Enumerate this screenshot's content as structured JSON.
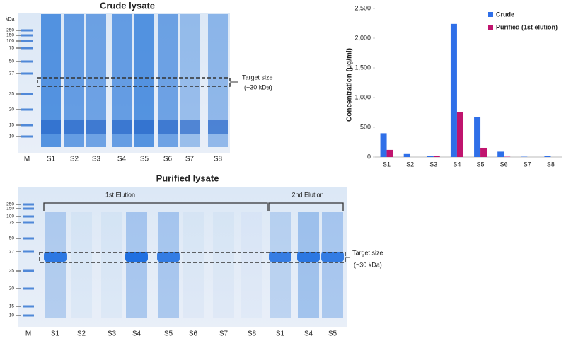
{
  "crude_gel": {
    "title": "Crude lysate",
    "unit": "kDa",
    "markers": [
      "250",
      "150",
      "100",
      "75",
      "50",
      "37",
      "25",
      "20",
      "15",
      "10"
    ],
    "lanes": [
      "M",
      "S1",
      "S2",
      "S3",
      "S4",
      "S5",
      "S6",
      "S7",
      "S8"
    ],
    "target_label": "Target size",
    "target_size": "(~30 kDa)"
  },
  "purified_gel": {
    "title": "Purified lysate",
    "markers": [
      "250",
      "150",
      "100",
      "75",
      "50",
      "37",
      "25",
      "20",
      "15",
      "10"
    ],
    "lanes": [
      "M",
      "S1",
      "S2",
      "S3",
      "S4",
      "S5",
      "S6",
      "S7",
      "S8",
      "S1",
      "S4",
      "S5"
    ],
    "groups": [
      "1st Elution",
      "2nd Elution"
    ],
    "target_label": "Target size",
    "target_size": "(~30 kDa)"
  },
  "chart_data": {
    "type": "bar",
    "y_label": "Concentration (μg/ml)",
    "categories": [
      "S1",
      "S2",
      "S3",
      "S4",
      "S5",
      "S6",
      "S7",
      "S8"
    ],
    "series": [
      {
        "name": "Crude",
        "color": "#2f6fe8",
        "values": [
          400,
          50,
          15,
          2240,
          670,
          90,
          5,
          15
        ]
      },
      {
        "name": "Purified (1st elution)",
        "color": "#c0146e",
        "values": [
          120,
          0,
          20,
          760,
          155,
          5,
          0,
          0
        ]
      }
    ],
    "ylim": [
      0,
      2500
    ],
    "yticks": [
      0,
      500,
      {
        "value": 1000,
        "label": "1,000"
      },
      {
        "value": 1500,
        "label": "1,500"
      },
      {
        "value": 2000,
        "label": "2,000"
      },
      {
        "value": 2500,
        "label": "2,500"
      }
    ],
    "grid": false,
    "legend": "top-right"
  }
}
